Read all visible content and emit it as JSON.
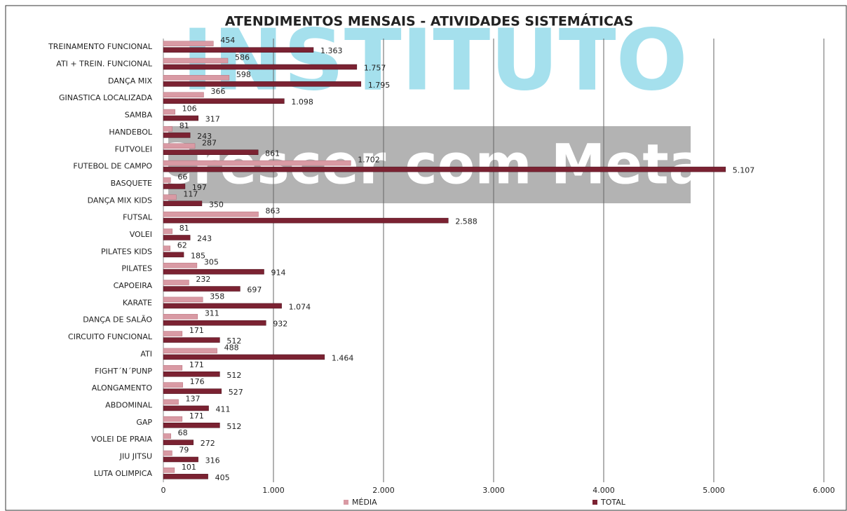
{
  "chart_data": {
    "type": "hbar",
    "title": "ATENDIMENTOS MENSAIS - ATIVIDADES SISTEMÁTICAS",
    "annotations": [
      "INSTITUTO",
      "Crescer com Meta"
    ],
    "categories": [
      "TREINAMENTO FUNCIONAL",
      "ATI + TREIN. FUNCIONAL",
      "DANÇA MIX",
      "GINASTICA LOCALIZADA",
      "SAMBA",
      "HANDEBOL",
      "FUTVOLEI",
      "FUTEBOL DE CAMPO",
      "BASQUETE",
      "DANÇA MIX KIDS",
      "FUTSAL",
      "VOLEI",
      "PILATES KIDS",
      "PILATES",
      "CAPOEIRA",
      "KARATE",
      "DANÇA DE SALÃO",
      "CIRCUITO FUNCIONAL",
      "ATI",
      "FIGHT´N´PUNP",
      "ALONGAMENTO",
      "ABDOMINAL",
      "GAP",
      "VOLEI DE PRAIA",
      "JIU JITSU",
      "LUTA OLIMPICA"
    ],
    "series": [
      {
        "name": "MÉDIA",
        "color": "#d99aa4",
        "values": [
          454,
          586,
          598,
          366,
          106,
          81,
          287,
          1702,
          66,
          117,
          863,
          81,
          62,
          305,
          232,
          358,
          311,
          171,
          488,
          171,
          176,
          137,
          171,
          68,
          79,
          101
        ],
        "value_labels": [
          "454",
          "586",
          "598",
          "366",
          "106",
          "81",
          "287",
          "1.702",
          "66",
          "117",
          "863",
          "81",
          "62",
          "305",
          "232",
          "358",
          "311",
          "171",
          "488",
          "171",
          "176",
          "137",
          "171",
          "68",
          "79",
          "101"
        ]
      },
      {
        "name": "TOTAL",
        "color": "#7b2232",
        "values": [
          1363,
          1757,
          1795,
          1098,
          317,
          243,
          861,
          5107,
          197,
          350,
          2588,
          243,
          185,
          914,
          697,
          1074,
          932,
          512,
          1464,
          512,
          527,
          411,
          512,
          272,
          316,
          405
        ],
        "value_labels": [
          "1.363",
          "1.757",
          "1.795",
          "1.098",
          "317",
          "243",
          "861",
          "5.107",
          "197",
          "350",
          "2.588",
          "243",
          "185",
          "914",
          "697",
          "1.074",
          "932",
          "512",
          "1.464",
          "512",
          "527",
          "411",
          "512",
          "272",
          "316",
          "405"
        ]
      }
    ],
    "xlim": [
      0,
      6000
    ],
    "xticks": [
      0,
      {
        "value": 1000,
        "label": "1.000"
      },
      {
        "value": 2000,
        "label": "2.000"
      },
      {
        "value": 3000,
        "label": "3.000"
      },
      {
        "value": 4000,
        "label": "4.000"
      },
      {
        "value": 5000,
        "label": "5.000"
      },
      {
        "value": 6000,
        "label": "6.000"
      }
    ],
    "grid": true,
    "legend": "bottom"
  }
}
